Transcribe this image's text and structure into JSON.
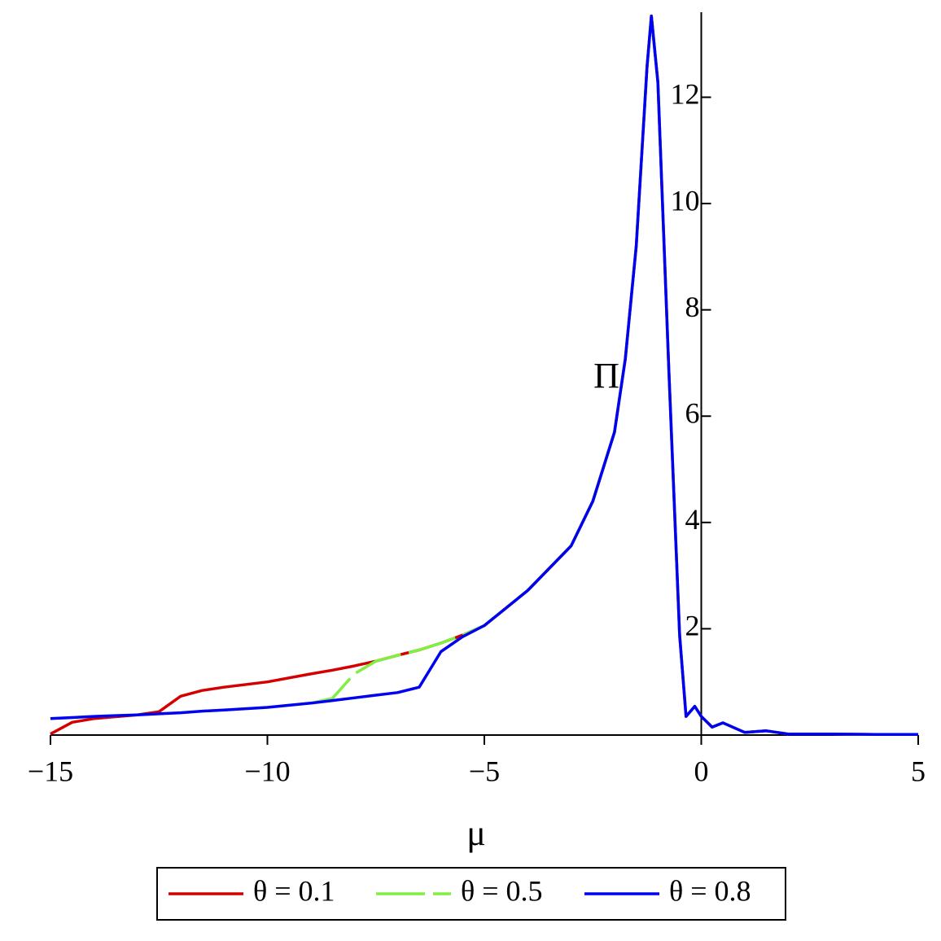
{
  "chart_data": {
    "type": "line",
    "xlabel": "μ",
    "ylabel": "Π",
    "x": [
      -15,
      -14.5,
      -14,
      -13,
      -12.5,
      -12,
      -11.5,
      -11,
      -10,
      -9,
      -8.5,
      -8,
      -7.5,
      -7,
      -6.5,
      -6,
      -5.5,
      -5,
      -4,
      -3,
      -2.5,
      -2,
      -1.75,
      -1.5,
      -1.25,
      -1.15,
      -1,
      -0.75,
      -0.5,
      -0.35,
      -0.15,
      0,
      0.25,
      0.5,
      1,
      1.5,
      2,
      3,
      4,
      5
    ],
    "series": [
      {
        "name": "θ = 0.1",
        "color": "#d40000",
        "dash": false,
        "values": [
          0.02,
          0.24,
          0.31,
          0.38,
          0.44,
          0.73,
          0.84,
          0.9,
          1.0,
          1.15,
          1.22,
          1.3,
          1.39,
          1.5,
          1.6,
          1.73,
          1.88,
          2.06,
          2.72,
          3.56,
          4.4,
          5.7,
          7.08,
          9.2,
          12.58,
          13.53,
          12.28,
          6.93,
          1.88,
          0.35,
          0.54,
          0.35,
          0.15,
          0.23,
          0.05,
          0.08,
          0.02,
          0.02,
          0.01,
          0.01
        ]
      },
      {
        "name": "θ = 0.5",
        "color": "#80f040",
        "dash": true,
        "values": [
          null,
          null,
          null,
          null,
          null,
          null,
          null,
          null,
          null,
          0.6,
          0.69,
          1.15,
          1.39,
          1.5,
          1.6,
          1.73,
          1.88,
          2.06,
          2.72,
          3.56,
          4.4,
          5.7,
          7.08,
          9.2,
          12.58,
          13.53,
          12.28,
          6.93,
          1.88,
          0.35,
          0.54,
          0.35,
          0.15,
          0.23,
          0.05,
          0.08,
          0.02,
          0.02,
          0.01,
          0.01
        ]
      },
      {
        "name": "θ = 0.8",
        "color": "#0000f0",
        "dash": false,
        "values": [
          0.31,
          0.33,
          0.35,
          0.38,
          0.4,
          0.42,
          0.45,
          0.47,
          0.52,
          0.6,
          0.65,
          0.7,
          0.75,
          0.8,
          0.9,
          1.57,
          1.85,
          2.06,
          2.72,
          3.56,
          4.4,
          5.7,
          7.08,
          9.2,
          12.58,
          13.53,
          12.28,
          6.93,
          1.88,
          0.35,
          0.54,
          0.35,
          0.15,
          0.23,
          0.05,
          0.08,
          0.02,
          0.02,
          0.01,
          0.01
        ]
      }
    ],
    "xlim": [
      -15,
      5
    ],
    "ylim": [
      0,
      13.6
    ],
    "xticks": [
      {
        "value": -15,
        "label": "−15"
      },
      {
        "value": -10,
        "label": "−10"
      },
      {
        "value": -5,
        "label": "−5"
      },
      0,
      5
    ],
    "yticks": [
      2,
      4,
      6,
      8,
      10,
      12
    ],
    "grid": false,
    "legend": "bottom"
  }
}
